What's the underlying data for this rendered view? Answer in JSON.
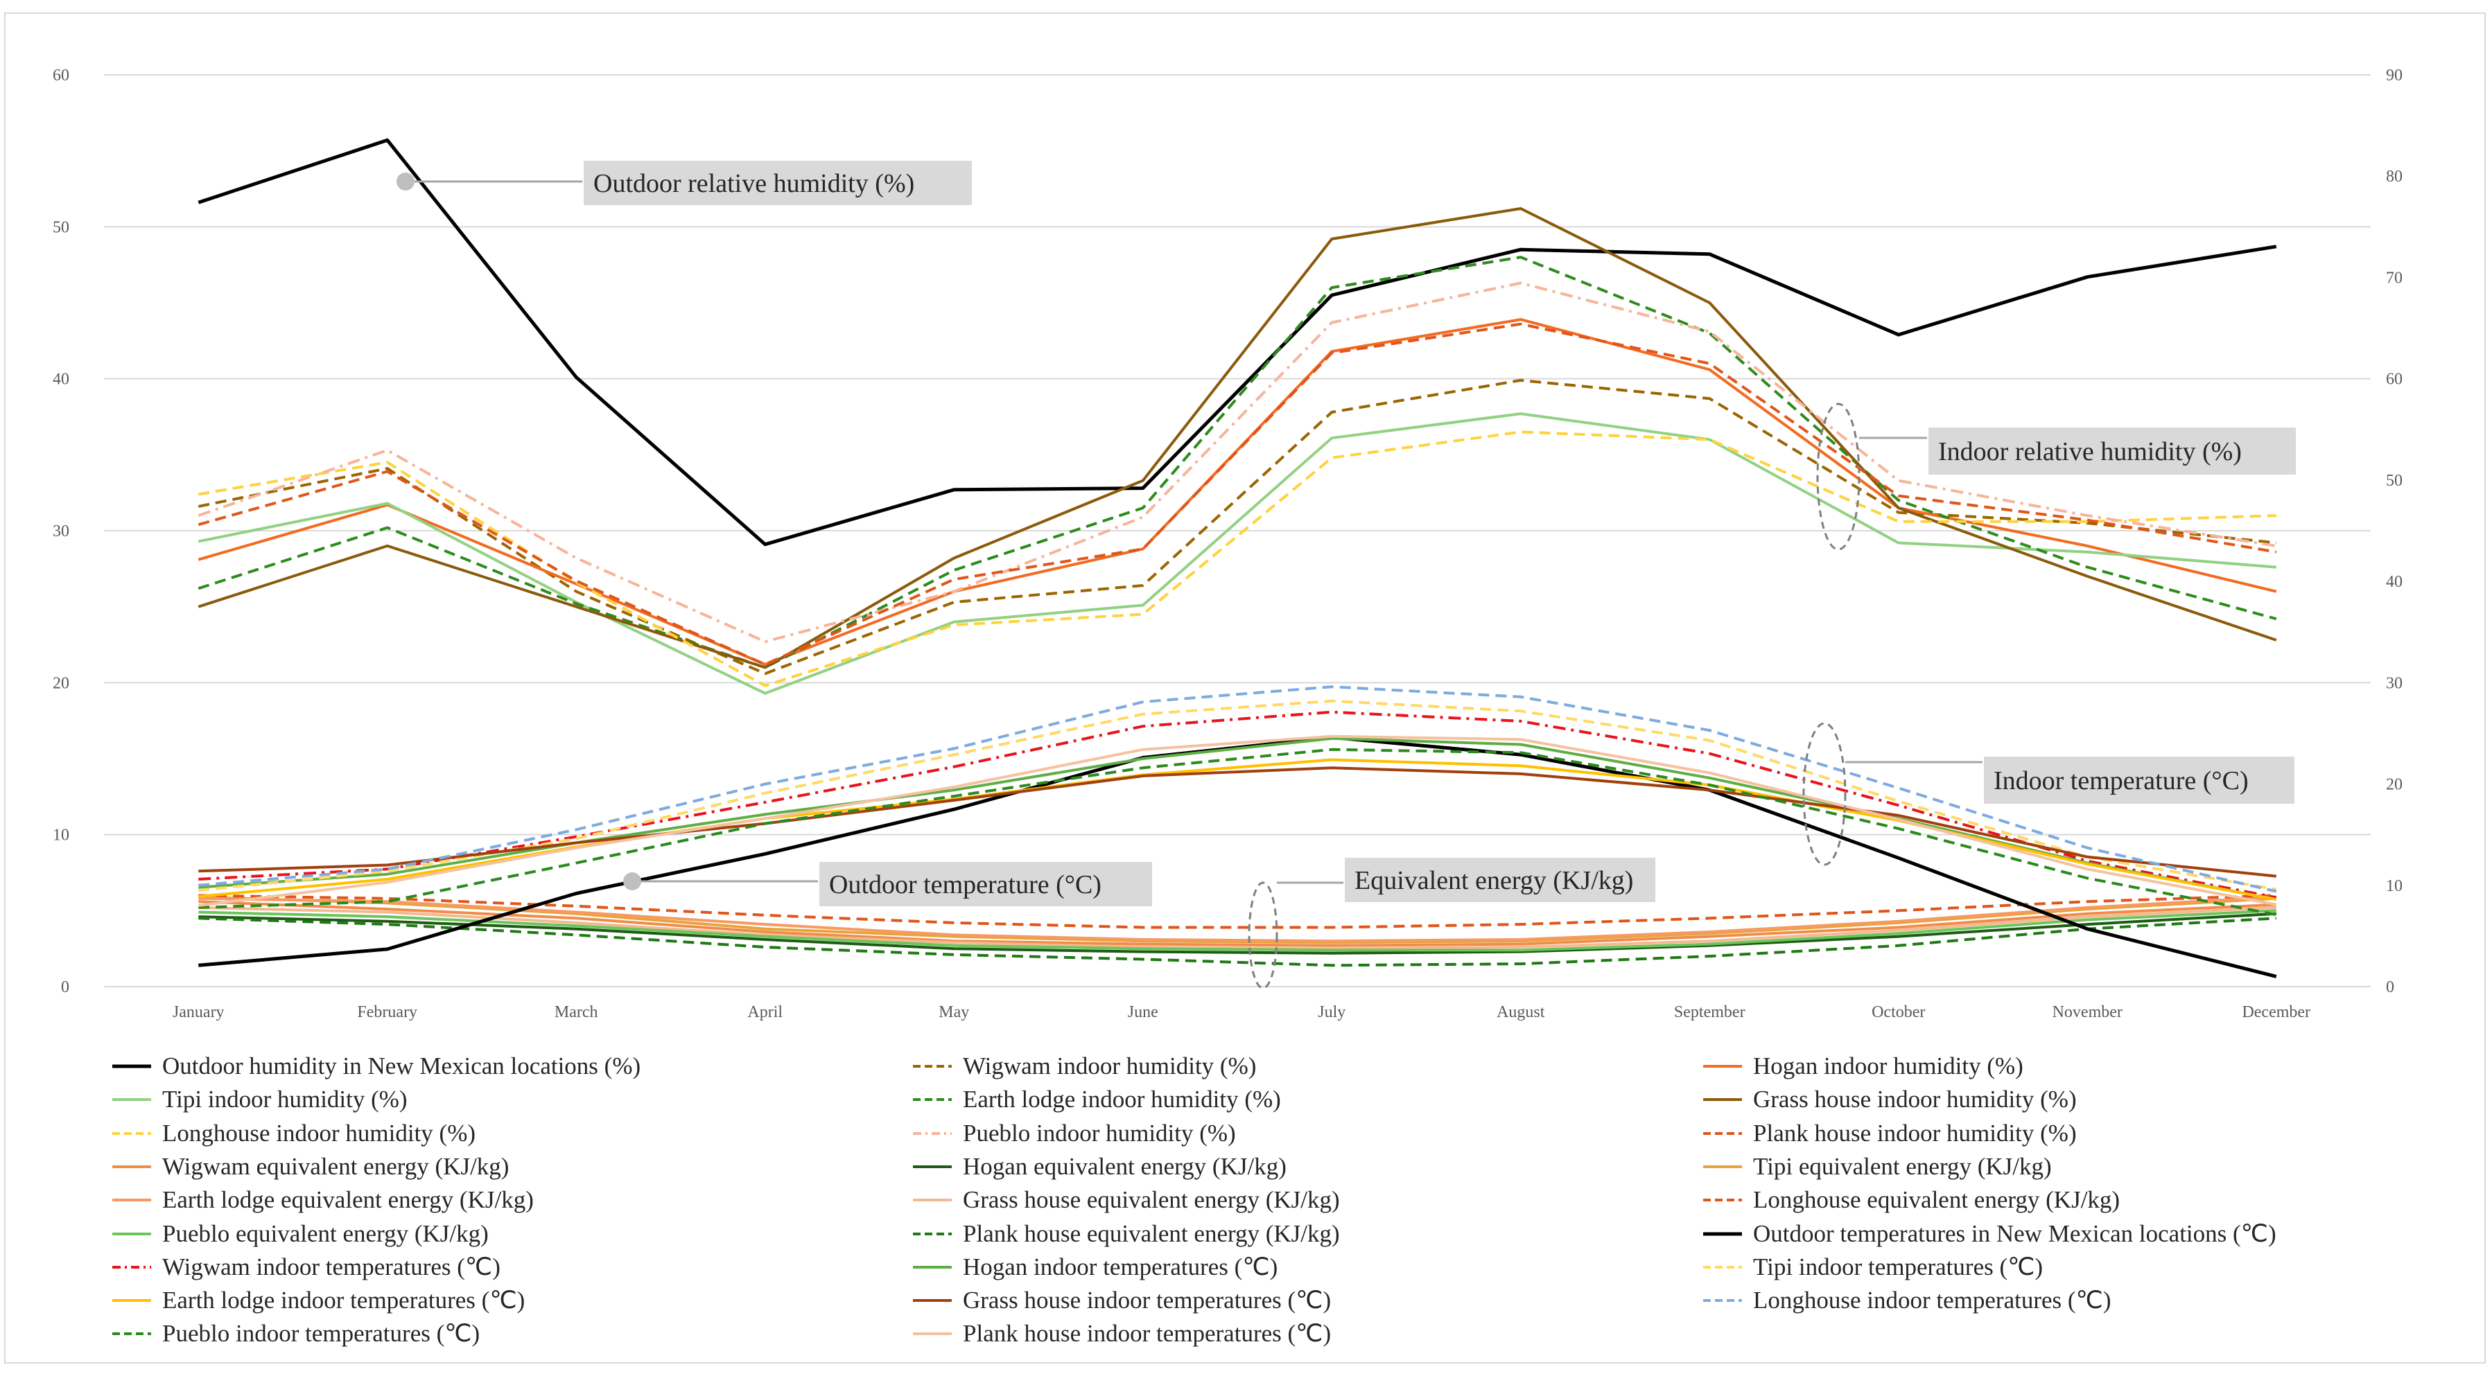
{
  "chart_data": {
    "type": "line",
    "categories": [
      "January",
      "February",
      "March",
      "April",
      "May",
      "June",
      "July",
      "August",
      "September",
      "October",
      "November",
      "December"
    ],
    "y_left": {
      "min": 0,
      "max": 60,
      "ticks": [
        "0",
        "10",
        "20",
        "30",
        "40",
        "50",
        "60"
      ]
    },
    "y_right": {
      "min": 0,
      "max": 90,
      "ticks": [
        "0",
        "10",
        "20",
        "30",
        "40",
        "50",
        "60",
        "70",
        "80",
        "90"
      ]
    },
    "grid": true,
    "legend_position": "bottom",
    "annotations": [
      {
        "id": "outdoor_rh",
        "text": "Outdoor relative humidity (%)"
      },
      {
        "id": "indoor_rh",
        "text": "Indoor relative humidity (%)"
      },
      {
        "id": "indoor_t",
        "text": "Indoor temperature (°C)"
      },
      {
        "id": "outdoor_t",
        "text": "Outdoor temperature (°C)"
      },
      {
        "id": "energy",
        "text": "Equivalent energy (KJ/kg)"
      }
    ],
    "series": [
      {
        "name": "Outdoor humidity in New Mexican locations (%)",
        "axis": "left",
        "color": "#000000",
        "dash": "solid",
        "values": [
          51.6,
          55.7,
          40.1,
          29.1,
          32.7,
          32.8,
          45.5,
          48.5,
          48.2,
          42.9,
          46.7,
          48.7
        ]
      },
      {
        "name": "Wigwam indoor humidity (%)",
        "axis": "left",
        "color": "#9c6500",
        "dash": "dash",
        "values": [
          31.6,
          34.1,
          26.0,
          20.6,
          25.3,
          26.4,
          37.8,
          39.9,
          38.7,
          31.2,
          30.5,
          29.2
        ]
      },
      {
        "name": "Hogan indoor humidity (%)",
        "axis": "left",
        "color": "#f26b21",
        "dash": "solid",
        "values": [
          28.1,
          31.7,
          26.5,
          21.2,
          26.0,
          28.8,
          41.8,
          43.9,
          40.6,
          31.5,
          29.0,
          26.0
        ]
      },
      {
        "name": "Tipi indoor humidity (%)",
        "axis": "left",
        "color": "#92d183",
        "dash": "solid",
        "values": [
          29.3,
          31.8,
          25.3,
          19.3,
          24.0,
          25.1,
          36.1,
          37.7,
          36.0,
          29.2,
          28.6,
          27.6
        ]
      },
      {
        "name": "Earth lodge indoor humidity (%)",
        "axis": "left",
        "color": "#2e8b1d",
        "dash": "dash",
        "values": [
          26.2,
          30.2,
          25.2,
          21.0,
          27.4,
          31.5,
          46.0,
          48.0,
          43.0,
          32.0,
          27.6,
          24.2
        ]
      },
      {
        "name": "Grass house indoor humidity (%)",
        "axis": "left",
        "color": "#8b5a0b",
        "dash": "solid",
        "values": [
          25.0,
          29.0,
          25.0,
          21.0,
          28.2,
          33.3,
          49.2,
          51.2,
          45.0,
          31.5,
          27.0,
          22.8
        ]
      },
      {
        "name": "Longhouse indoor humidity (%)",
        "axis": "left",
        "color": "#ffd23f",
        "dash": "dash",
        "values": [
          32.4,
          34.5,
          26.6,
          19.8,
          23.8,
          24.5,
          34.8,
          36.5,
          36.0,
          30.6,
          30.6,
          31.0
        ]
      },
      {
        "name": "Pueblo indoor humidity (%)",
        "axis": "left",
        "color": "#f7b49a",
        "dash": "dashdot",
        "values": [
          31.0,
          35.3,
          28.2,
          22.7,
          26.0,
          30.9,
          43.7,
          46.3,
          43.1,
          33.3,
          31.0,
          29.0
        ]
      },
      {
        "name": "Plank house indoor humidity (%)",
        "axis": "left",
        "color": "#e0561a",
        "dash": "dash",
        "values": [
          30.4,
          33.9,
          26.7,
          21.2,
          26.8,
          28.8,
          41.7,
          43.6,
          41.0,
          32.3,
          30.7,
          28.6
        ]
      },
      {
        "name": "Wigwam equivalent energy (KJ/kg)",
        "axis": "left",
        "color": "#f08c4a",
        "dash": "solid",
        "values": [
          5.6,
          5.1,
          4.5,
          3.6,
          3.0,
          2.8,
          2.7,
          2.8,
          3.3,
          3.9,
          4.8,
          5.4
        ]
      },
      {
        "name": "Hogan equivalent energy (KJ/kg)",
        "axis": "left",
        "color": "#1e5b14",
        "dash": "solid",
        "values": [
          4.6,
          4.3,
          3.8,
          3.1,
          2.5,
          2.3,
          2.2,
          2.3,
          2.7,
          3.3,
          4.1,
          4.8
        ]
      },
      {
        "name": "Tipi equivalent energy (KJ/kg)",
        "axis": "left",
        "color": "#e8a33a",
        "dash": "solid",
        "values": [
          5.9,
          5.5,
          4.8,
          3.8,
          3.3,
          3.0,
          2.9,
          3.0,
          3.5,
          4.2,
          5.1,
          5.8
        ]
      },
      {
        "name": "Earth lodge equivalent energy (KJ/kg)",
        "axis": "left",
        "color": "#f59a63",
        "dash": "solid",
        "values": [
          5.8,
          5.6,
          4.9,
          4.1,
          3.4,
          3.1,
          3.0,
          3.1,
          3.6,
          4.3,
          5.2,
          5.9
        ]
      },
      {
        "name": "Grass house equivalent energy (KJ/kg)",
        "axis": "left",
        "color": "#f5b890",
        "dash": "solid",
        "values": [
          5.2,
          4.9,
          4.2,
          3.4,
          2.9,
          2.6,
          2.5,
          2.6,
          3.0,
          3.7,
          4.6,
          5.2
        ]
      },
      {
        "name": "Longhouse equivalent energy (KJ/kg)",
        "axis": "left",
        "color": "#e0561a",
        "dash": "dash",
        "values": [
          6.0,
          5.8,
          5.3,
          4.7,
          4.2,
          3.9,
          3.9,
          4.1,
          4.5,
          5.0,
          5.6,
          6.0
        ]
      },
      {
        "name": "Pueblo equivalent energy (KJ/kg)",
        "axis": "left",
        "color": "#6cc45c",
        "dash": "solid",
        "values": [
          4.9,
          4.6,
          4.0,
          3.3,
          2.7,
          2.5,
          2.4,
          2.4,
          2.8,
          3.5,
          4.4,
          5.0
        ]
      },
      {
        "name": "Plank house equivalent energy (KJ/kg)",
        "axis": "left",
        "color": "#1f7a14",
        "dash": "dash",
        "values": [
          4.5,
          4.1,
          3.4,
          2.6,
          2.1,
          1.8,
          1.4,
          1.5,
          2.0,
          2.7,
          3.8,
          4.5
        ]
      },
      {
        "name": "Outdoor temperatures in New Mexican locations (℃)",
        "axis": "right",
        "color": "#000000",
        "dash": "solid",
        "values": [
          2.1,
          3.7,
          9.2,
          13.1,
          17.5,
          22.6,
          24.6,
          22.9,
          19.4,
          12.7,
          5.7,
          1.0
        ]
      },
      {
        "name": "Wigwam indoor temperatures (℃)",
        "axis": "right",
        "color": "#e8141d",
        "dash": "dashdot",
        "values": [
          10.6,
          11.6,
          14.8,
          18.2,
          21.7,
          25.7,
          27.1,
          26.2,
          23.0,
          17.9,
          12.4,
          8.8
        ]
      },
      {
        "name": "Hogan indoor temperatures (℃)",
        "axis": "right",
        "color": "#5fae45",
        "dash": "solid",
        "values": [
          9.8,
          11.1,
          14.2,
          17.0,
          19.4,
          22.5,
          24.5,
          23.9,
          20.6,
          16.6,
          12.2,
          8.6
        ]
      },
      {
        "name": "Tipi indoor temperatures (℃)",
        "axis": "right",
        "color": "#ffd966",
        "dash": "dash",
        "values": [
          9.5,
          11.4,
          14.6,
          19.1,
          22.9,
          26.9,
          28.2,
          27.2,
          24.3,
          18.3,
          12.8,
          9.6
        ]
      },
      {
        "name": "Earth lodge indoor temperatures (℃)",
        "axis": "right",
        "color": "#ffc000",
        "dash": "solid",
        "values": [
          8.9,
          10.6,
          13.8,
          16.6,
          18.5,
          20.9,
          22.4,
          21.8,
          19.9,
          16.4,
          12.1,
          8.6
        ]
      },
      {
        "name": "Grass house indoor temperatures (℃)",
        "axis": "right",
        "color": "#a0400f",
        "dash": "solid",
        "values": [
          11.4,
          12.0,
          14.2,
          16.1,
          18.4,
          20.8,
          21.6,
          21.0,
          19.4,
          16.9,
          12.8,
          10.9
        ]
      },
      {
        "name": "Longhouse indoor temperatures (℃)",
        "axis": "right",
        "color": "#7eaadf",
        "dash": "dash",
        "values": [
          10.0,
          11.6,
          15.5,
          20.0,
          23.5,
          28.1,
          29.6,
          28.6,
          25.3,
          19.6,
          13.7,
          9.4
        ]
      },
      {
        "name": "Pueblo indoor temperatures (℃)",
        "axis": "right",
        "color": "#2a8a1d",
        "dash": "dash",
        "values": [
          7.8,
          8.4,
          12.2,
          16.1,
          18.8,
          21.6,
          23.4,
          23.1,
          19.9,
          15.6,
          10.7,
          7.1
        ]
      },
      {
        "name": "Plank house indoor temperatures (℃)",
        "axis": "right",
        "color": "#f4c2a0",
        "dash": "solid",
        "values": [
          8.0,
          10.3,
          13.7,
          16.6,
          19.7,
          23.4,
          24.7,
          24.4,
          21.1,
          16.5,
          11.6,
          8.1
        ]
      }
    ]
  }
}
